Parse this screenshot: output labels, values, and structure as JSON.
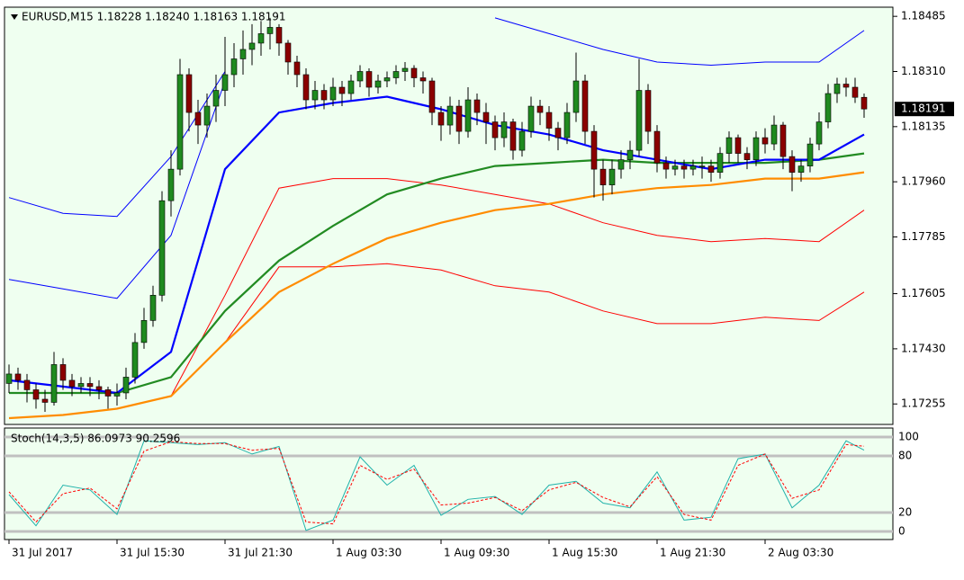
{
  "chart_data": [
    {
      "type": "candlestick",
      "title": "EURUSD,M15  1.18228 1.18240 1.18163 1.18191",
      "current_price": 1.18191,
      "up_color": "#1f8a1f",
      "down_color": "#8b0000",
      "wick_color": "#000000",
      "x": [
        0,
        1,
        2,
        3,
        4,
        5,
        6,
        7,
        8,
        9,
        10,
        11,
        12,
        13,
        14,
        15,
        16,
        17,
        18,
        19,
        20,
        21,
        22,
        23,
        24,
        25,
        26,
        27,
        28,
        29,
        30,
        31,
        32,
        33,
        34,
        35,
        36,
        37,
        38,
        39,
        40,
        41,
        42,
        43,
        44,
        45,
        46,
        47,
        48,
        49,
        50,
        51,
        52,
        53,
        54,
        55,
        56,
        57,
        58,
        59,
        60,
        61,
        62,
        63,
        64,
        65,
        66,
        67,
        68,
        69,
        70,
        71,
        72,
        73,
        74,
        75,
        76,
        77,
        78,
        79,
        80,
        81,
        82,
        83,
        84,
        85,
        86,
        87,
        88,
        89,
        90,
        91,
        92,
        93,
        94,
        95
      ],
      "open": [
        1.1732,
        1.1735,
        1.1733,
        1.173,
        1.1727,
        1.1726,
        1.1738,
        1.1733,
        1.1731,
        1.1732,
        1.1731,
        1.173,
        1.1728,
        1.1729,
        1.1734,
        1.1745,
        1.1752,
        1.176,
        1.179,
        1.18,
        1.183,
        1.1818,
        1.1814,
        1.182,
        1.1825,
        1.183,
        1.1835,
        1.1838,
        1.184,
        1.1843,
        1.1845,
        1.184,
        1.1834,
        1.183,
        1.1822,
        1.1825,
        1.1822,
        1.1826,
        1.1824,
        1.1828,
        1.1831,
        1.1826,
        1.1828,
        1.1829,
        1.1831,
        1.1832,
        1.1829,
        1.1828,
        1.1818,
        1.1814,
        1.182,
        1.1812,
        1.1822,
        1.1818,
        1.1815,
        1.181,
        1.1815,
        1.1806,
        1.1812,
        1.182,
        1.1818,
        1.1813,
        1.181,
        1.1818,
        1.1828,
        1.1812,
        1.18,
        1.1795,
        1.18,
        1.1803,
        1.1806,
        1.1825,
        1.1812,
        1.1802,
        1.18,
        1.1801,
        1.18,
        1.1801,
        1.1801,
        1.1799,
        1.1805,
        1.181,
        1.1805,
        1.1803,
        1.181,
        1.1808,
        1.1814,
        1.1804,
        1.1799,
        1.1801,
        1.1808,
        1.1815,
        1.1824,
        1.1827,
        1.1826,
        1.18228
      ],
      "high": [
        1.1738,
        1.1737,
        1.1735,
        1.1732,
        1.173,
        1.1742,
        1.174,
        1.1735,
        1.1734,
        1.1734,
        1.1733,
        1.1731,
        1.1732,
        1.1737,
        1.1748,
        1.1756,
        1.1763,
        1.1793,
        1.1806,
        1.1835,
        1.1832,
        1.1822,
        1.1824,
        1.183,
        1.1842,
        1.184,
        1.1844,
        1.1846,
        1.1847,
        1.1848,
        1.1846,
        1.1841,
        1.1836,
        1.1832,
        1.1828,
        1.1827,
        1.1829,
        1.1828,
        1.183,
        1.1833,
        1.1832,
        1.183,
        1.1831,
        1.1833,
        1.1834,
        1.1833,
        1.1831,
        1.1829,
        1.182,
        1.1823,
        1.1822,
        1.1826,
        1.1824,
        1.1821,
        1.1817,
        1.1818,
        1.1816,
        1.1815,
        1.1823,
        1.1822,
        1.182,
        1.1815,
        1.1821,
        1.1837,
        1.183,
        1.1814,
        1.1803,
        1.1803,
        1.1806,
        1.1809,
        1.1835,
        1.1827,
        1.1814,
        1.1804,
        1.1803,
        1.1803,
        1.1803,
        1.1804,
        1.1803,
        1.1807,
        1.1812,
        1.1811,
        1.1807,
        1.1812,
        1.1813,
        1.1817,
        1.1815,
        1.1806,
        1.1803,
        1.181,
        1.1818,
        1.1827,
        1.1829,
        1.1829,
        1.1829,
        1.1824
      ],
      "low": [
        1.1729,
        1.173,
        1.1726,
        1.1724,
        1.1723,
        1.1725,
        1.173,
        1.1728,
        1.1729,
        1.1728,
        1.1727,
        1.1724,
        1.1725,
        1.1727,
        1.1732,
        1.1743,
        1.175,
        1.1758,
        1.1785,
        1.1798,
        1.1812,
        1.1808,
        1.181,
        1.1815,
        1.182,
        1.1826,
        1.183,
        1.1833,
        1.1836,
        1.1838,
        1.1836,
        1.183,
        1.1826,
        1.1819,
        1.1819,
        1.1819,
        1.182,
        1.182,
        1.1822,
        1.1826,
        1.1823,
        1.1824,
        1.1826,
        1.1827,
        1.1828,
        1.1826,
        1.1824,
        1.1814,
        1.1809,
        1.1811,
        1.1808,
        1.181,
        1.1814,
        1.1808,
        1.1806,
        1.1807,
        1.1803,
        1.1804,
        1.181,
        1.1814,
        1.1809,
        1.1806,
        1.1808,
        1.1815,
        1.1808,
        1.1791,
        1.179,
        1.1792,
        1.1797,
        1.18,
        1.1804,
        1.1808,
        1.1799,
        1.1797,
        1.1798,
        1.1797,
        1.1798,
        1.1797,
        1.1796,
        1.1797,
        1.1802,
        1.1802,
        1.18,
        1.1801,
        1.1805,
        1.1806,
        1.18,
        1.1793,
        1.1796,
        1.1799,
        1.1806,
        1.1813,
        1.1821,
        1.1823,
        1.1821,
        1.18163
      ],
      "close": [
        1.1735,
        1.1733,
        1.173,
        1.1727,
        1.1726,
        1.1738,
        1.1733,
        1.1731,
        1.1732,
        1.1731,
        1.173,
        1.1728,
        1.1729,
        1.1734,
        1.1745,
        1.1752,
        1.176,
        1.179,
        1.18,
        1.183,
        1.1818,
        1.1814,
        1.182,
        1.1825,
        1.183,
        1.1835,
        1.1838,
        1.184,
        1.1843,
        1.1845,
        1.184,
        1.1834,
        1.183,
        1.1822,
        1.1825,
        1.1822,
        1.1826,
        1.1824,
        1.1828,
        1.1831,
        1.1826,
        1.1828,
        1.1829,
        1.1831,
        1.1832,
        1.1829,
        1.1828,
        1.1818,
        1.1814,
        1.182,
        1.1812,
        1.1822,
        1.1818,
        1.1815,
        1.181,
        1.1815,
        1.1806,
        1.1812,
        1.182,
        1.1818,
        1.1813,
        1.181,
        1.1818,
        1.1828,
        1.1812,
        1.18,
        1.1795,
        1.18,
        1.1803,
        1.1806,
        1.1825,
        1.1812,
        1.1802,
        1.18,
        1.1801,
        1.18,
        1.1801,
        1.1801,
        1.1799,
        1.1805,
        1.181,
        1.1805,
        1.1803,
        1.181,
        1.1808,
        1.1814,
        1.1804,
        1.1799,
        1.1801,
        1.1808,
        1.1815,
        1.1824,
        1.1827,
        1.1826,
        1.18228,
        1.18191
      ],
      "overlays": [
        {
          "color": "#0000ff",
          "thick": false,
          "x": [
            0,
            6,
            12,
            18,
            24,
            30,
            36,
            42,
            48,
            54,
            60,
            66,
            72,
            78,
            84,
            90,
            95
          ],
          "values": [
            1.1791,
            1.1786,
            1.1785,
            1.1804,
            1.1831,
            null,
            null,
            null,
            null,
            1.1848,
            1.1843,
            1.1838,
            1.1834,
            1.1833,
            1.1834,
            1.1834,
            1.1844
          ]
        },
        {
          "color": "#0000ff",
          "thick": false,
          "x": [
            0,
            6,
            12,
            18,
            24,
            30,
            36,
            42,
            48,
            54,
            60,
            66,
            72,
            78,
            84,
            90,
            95
          ],
          "values": [
            1.1765,
            1.1762,
            1.1759,
            1.1779,
            1.1828,
            null,
            null,
            null,
            null,
            null,
            null,
            null,
            null,
            null,
            null,
            null,
            null
          ]
        },
        {
          "color": "#ff0000",
          "thick": false,
          "x": [
            0,
            6,
            12,
            18,
            24,
            30,
            36,
            42,
            48,
            54,
            60,
            66,
            72,
            78,
            84,
            90,
            95
          ],
          "values": [
            null,
            null,
            null,
            1.1728,
            1.176,
            1.1794,
            1.1797,
            1.1797,
            1.1795,
            1.1792,
            1.1789,
            1.1783,
            1.1779,
            1.1777,
            1.1778,
            1.1777,
            1.1787
          ]
        },
        {
          "color": "#ff0000",
          "thick": false,
          "x": [
            0,
            6,
            12,
            18,
            24,
            30,
            36,
            42,
            48,
            54,
            60,
            66,
            72,
            78,
            84,
            90,
            95
          ],
          "values": [
            null,
            null,
            null,
            null,
            1.1745,
            1.1769,
            1.1769,
            1.177,
            1.1768,
            1.1763,
            1.1761,
            1.1755,
            1.1751,
            1.1751,
            1.1753,
            1.1752,
            1.1761
          ]
        },
        {
          "color": "#ff8c00",
          "thick": true,
          "x": [
            0,
            6,
            12,
            18,
            24,
            30,
            36,
            42,
            48,
            54,
            60,
            66,
            72,
            78,
            84,
            90,
            95
          ],
          "values": [
            1.1721,
            1.1722,
            1.1724,
            1.1728,
            1.1745,
            1.1761,
            1.177,
            1.1778,
            1.1783,
            1.1787,
            1.1789,
            1.1792,
            1.1794,
            1.1795,
            1.1797,
            1.1797,
            1.1799
          ]
        },
        {
          "color": "#228b22",
          "thick": true,
          "x": [
            0,
            6,
            12,
            18,
            24,
            30,
            36,
            42,
            48,
            54,
            60,
            66,
            72,
            78,
            84,
            90,
            95
          ],
          "values": [
            1.1729,
            1.1729,
            1.1729,
            1.1734,
            1.1755,
            1.1771,
            1.1782,
            1.1792,
            1.1797,
            1.1801,
            1.1802,
            1.1803,
            1.1802,
            1.1802,
            1.1802,
            1.1803,
            1.1805
          ]
        },
        {
          "color": "#0000ff",
          "thick": true,
          "x": [
            0,
            6,
            12,
            18,
            24,
            30,
            36,
            42,
            48,
            54,
            60,
            66,
            72,
            78,
            84,
            90,
            95
          ],
          "values": [
            1.1733,
            1.1731,
            1.1729,
            1.1742,
            1.18,
            1.1818,
            1.1821,
            1.1823,
            1.1819,
            1.1814,
            1.1811,
            1.1806,
            1.1803,
            1.18,
            1.1803,
            1.1803,
            1.1811
          ]
        }
      ],
      "xlim": [
        -0.5,
        98.2
      ],
      "ylim": [
        1.1719,
        1.18514
      ],
      "yticks": [
        1.18485,
        {
          "value": 1.1831,
          "label": "1.18310"
        },
        1.18135,
        {
          "value": 1.1796,
          "label": "1.17960"
        },
        1.17785,
        1.17605,
        {
          "value": 1.1743,
          "label": "1.17430"
        },
        1.17255
      ],
      "xticks": [
        {
          "value": 0,
          "label": "31 Jul 2017"
        },
        {
          "value": 12,
          "label": "31 Jul 15:30"
        },
        {
          "value": 24,
          "label": "31 Jul 21:30"
        },
        {
          "value": 36,
          "label": "1 Aug 03:30"
        },
        {
          "value": 48,
          "label": "1 Aug 09:30"
        },
        {
          "value": 60,
          "label": "1 Aug 15:30"
        },
        {
          "value": 72,
          "label": "1 Aug 21:30"
        },
        {
          "value": 84,
          "label": "2 Aug 03:30"
        }
      ]
    },
    {
      "type": "line",
      "title": "Stoch(14,3,5) 86.0973 90.2596",
      "x": [
        0,
        3,
        6,
        9,
        12,
        15,
        18,
        21,
        24,
        27,
        30,
        33,
        36,
        39,
        42,
        45,
        48,
        51,
        54,
        57,
        60,
        63,
        66,
        69,
        72,
        75,
        78,
        81,
        84,
        87,
        90,
        93,
        95
      ],
      "series": [
        {
          "color": "#20b2aa",
          "dashed": false,
          "values": [
            39,
            6,
            49,
            44,
            18,
            96,
            94,
            92,
            94,
            82,
            90,
            1,
            12,
            79,
            49,
            70,
            17,
            34,
            37,
            18,
            49,
            53,
            30,
            25,
            63,
            12,
            15,
            77,
            82,
            25,
            49,
            96,
            86.0973
          ]
        },
        {
          "color": "#ff0000",
          "dashed": true,
          "values": [
            42,
            10,
            40,
            46,
            24,
            85,
            95,
            93,
            93,
            86,
            88,
            10,
            8,
            70,
            55,
            66,
            28,
            30,
            36,
            22,
            44,
            52,
            36,
            26,
            58,
            18,
            12,
            70,
            82,
            35,
            44,
            92,
            90.2596
          ]
        }
      ],
      "xlim": [
        -0.5,
        98.2
      ],
      "ylim": [
        -8.6,
        109.5
      ],
      "yticks": [
        100,
        80,
        20,
        0
      ]
    }
  ]
}
